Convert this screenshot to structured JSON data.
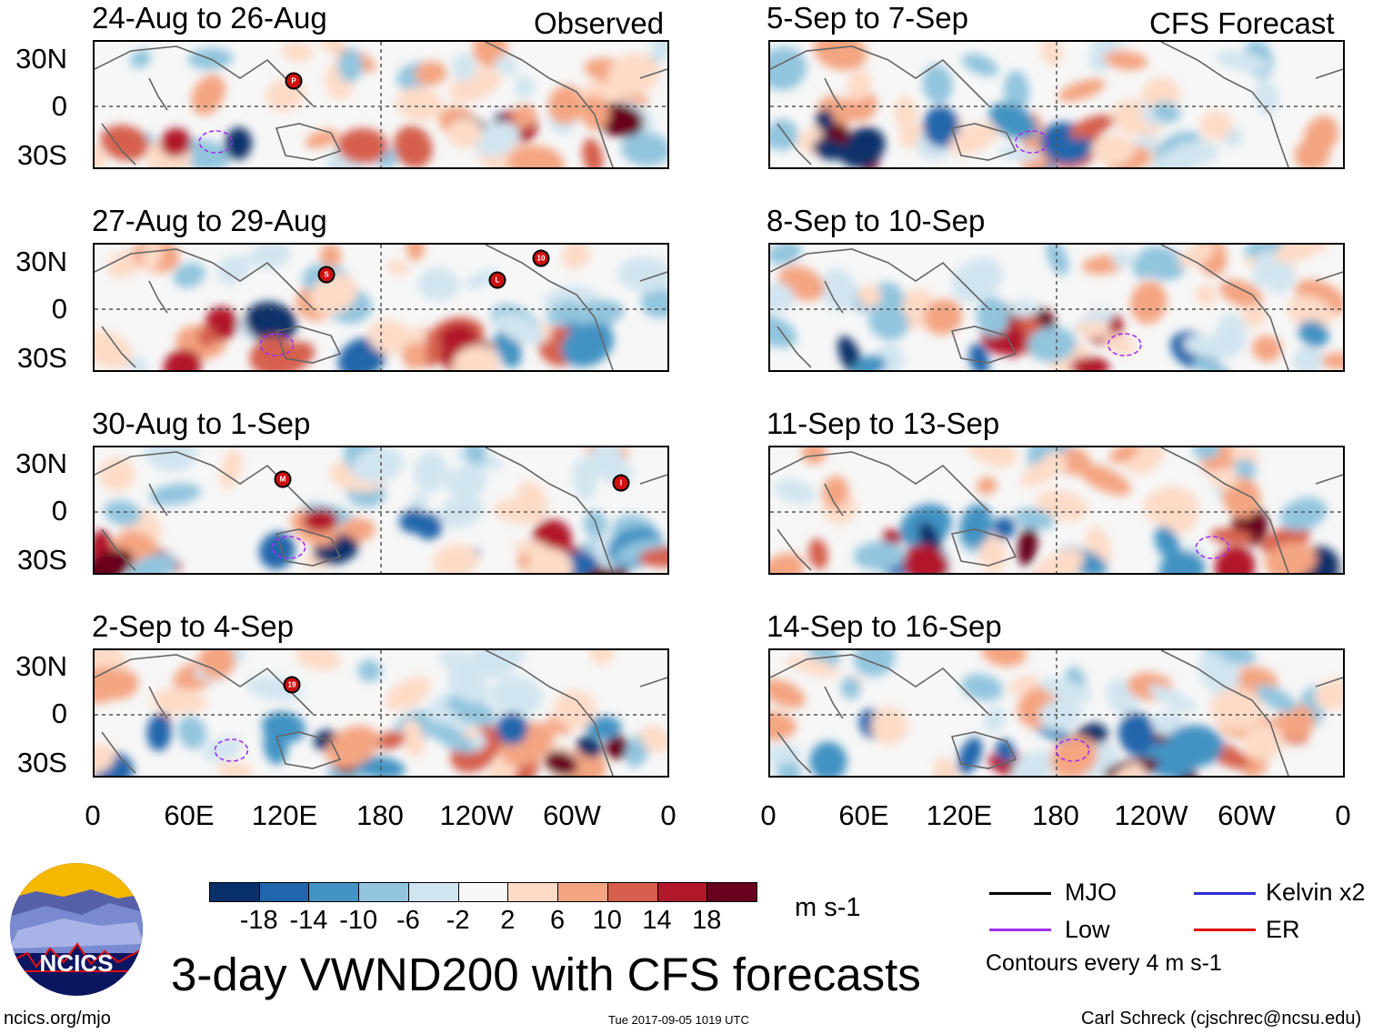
{
  "labels": {
    "observed": "Observed",
    "forecast": "CFS Forecast"
  },
  "panels_left": [
    {
      "title": "24-Aug to 26-Aug"
    },
    {
      "title": "27-Aug to 29-Aug"
    },
    {
      "title": "30-Aug to 1-Sep"
    },
    {
      "title": "2-Sep to 4-Sep"
    }
  ],
  "panels_right": [
    {
      "title": "5-Sep to 7-Sep"
    },
    {
      "title": "8-Sep to 10-Sep"
    },
    {
      "title": "11-Sep to 13-Sep"
    },
    {
      "title": "14-Sep to 16-Sep"
    }
  ],
  "lat_labels": [
    "30N",
    "0",
    "30S"
  ],
  "lon_labels": [
    "0",
    "60E",
    "120E",
    "180",
    "120W",
    "60W",
    "0"
  ],
  "storms": {
    "p1": "P",
    "p2a": "S",
    "p2b": "L",
    "p2c": "10",
    "p3a": "M",
    "p3b": "I",
    "p4": "19"
  },
  "colorbar": {
    "colors": [
      "#08306b",
      "#2166ac",
      "#4393c3",
      "#92c5de",
      "#d1e5f0",
      "#f7f7f7",
      "#fddbc7",
      "#f4a582",
      "#d6604d",
      "#b2182b",
      "#67001f"
    ],
    "ticks": [
      "-18",
      "-14",
      "-10",
      "-6",
      "-2",
      "2",
      "6",
      "10",
      "14",
      "18"
    ],
    "units": "m s-1"
  },
  "legend": {
    "mjo": "MJO",
    "low": "Low",
    "kelvin": "Kelvin x2",
    "er": "ER",
    "mjo_color": "#000000",
    "low_color": "#a030f0",
    "kelvin_color": "#3030d0",
    "er_color": "#e01010",
    "contours": "Contours every 4 m s-1"
  },
  "logo_text": "NCICS",
  "title": "3-day VWND200 with CFS forecasts",
  "footer": {
    "url": "ncics.org/mjo",
    "timestamp": "Tue 2017-09-05 1019 UTC",
    "author": "Carl Schreck (cjschrec@ncsu.edu)"
  }
}
